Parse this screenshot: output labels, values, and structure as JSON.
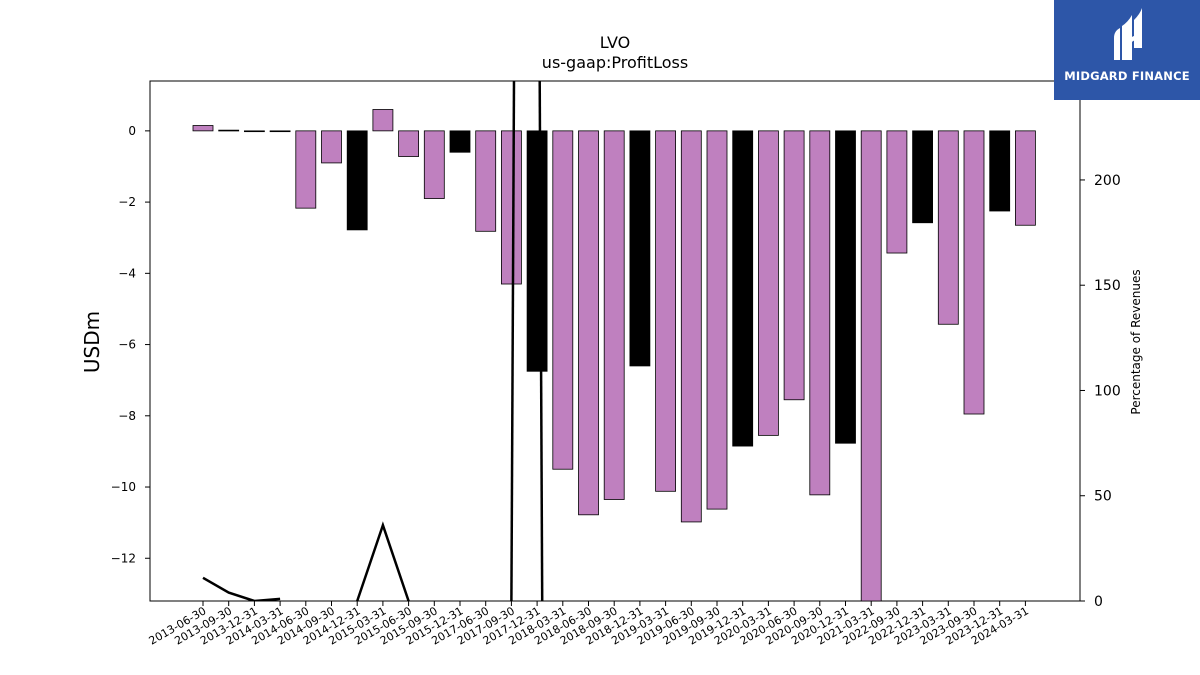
{
  "chart_data": {
    "type": "bar",
    "title": "LVO",
    "subtitle": "us-gaap:ProfitLoss",
    "ylabel": "USDm",
    "y2label": "Percentage of Revenues",
    "ylim": [
      -13.2,
      1.4
    ],
    "y2lim": [
      0,
      247
    ],
    "yticks": [
      0,
      -2,
      -4,
      -6,
      -8,
      -10,
      -12
    ],
    "y2ticks": [
      0,
      50,
      100,
      150,
      200
    ],
    "categories": [
      "2013-06-30",
      "2013-09-30",
      "2013-12-31",
      "2014-03-31",
      "2014-06-30",
      "2014-09-30",
      "2014-12-31",
      "2015-03-31",
      "2015-06-30",
      "2015-09-30",
      "2015-12-31",
      "2017-06-30",
      "2017-09-30",
      "2017-12-31",
      "2018-03-31",
      "2018-06-30",
      "2018-09-30",
      "2018-12-31",
      "2019-03-31",
      "2019-06-30",
      "2019-09-30",
      "2019-12-31",
      "2020-03-31",
      "2020-06-30",
      "2020-09-30",
      "2020-12-31",
      "2021-03-31",
      "2022-09-30",
      "2022-12-31",
      "2023-03-31",
      "2023-09-30",
      "2023-12-31",
      "2024-03-31"
    ],
    "values": [
      0.15,
      0.02,
      -0.02,
      -0.01,
      -2.17,
      -0.9,
      -2.78,
      0.6,
      -0.72,
      -1.9,
      -0.6,
      -2.82,
      -4.3,
      -6.75,
      -9.5,
      -10.78,
      -10.35,
      -6.6,
      -10.12,
      -10.98,
      -10.62,
      -8.85,
      -8.55,
      -7.55,
      -10.22,
      -8.77,
      -13.2,
      -3.43,
      -2.58,
      -5.43,
      -7.95,
      -2.25,
      -2.65
    ],
    "bar_colors": [
      "#bf80bf",
      "#000000",
      "#000000",
      "#000000",
      "#bf80bf",
      "#bf80bf",
      "#000000",
      "#bf80bf",
      "#bf80bf",
      "#bf80bf",
      "#000000",
      "#bf80bf",
      "#bf80bf",
      "#000000",
      "#bf80bf",
      "#bf80bf",
      "#bf80bf",
      "#000000",
      "#bf80bf",
      "#bf80bf",
      "#bf80bf",
      "#000000",
      "#bf80bf",
      "#bf80bf",
      "#bf80bf",
      "#000000",
      "#bf80bf",
      "#bf80bf",
      "#000000",
      "#bf80bf",
      "#bf80bf",
      "#000000",
      "#bf80bf"
    ],
    "secondary_line": {
      "color": "#000000",
      "segments": [
        [
          [
            0,
            11
          ],
          [
            1,
            4
          ],
          [
            2,
            0
          ],
          [
            3,
            1
          ]
        ],
        [
          [
            6,
            0
          ],
          [
            7,
            36
          ],
          [
            8,
            0
          ]
        ],
        [
          [
            12,
            0
          ],
          [
            12.1,
            248
          ]
        ],
        [
          [
            13.1,
            248
          ],
          [
            13.2,
            0
          ]
        ]
      ]
    },
    "grid": false,
    "legend": "none"
  },
  "logo": {
    "name": "MIDGARD FINANCE"
  }
}
